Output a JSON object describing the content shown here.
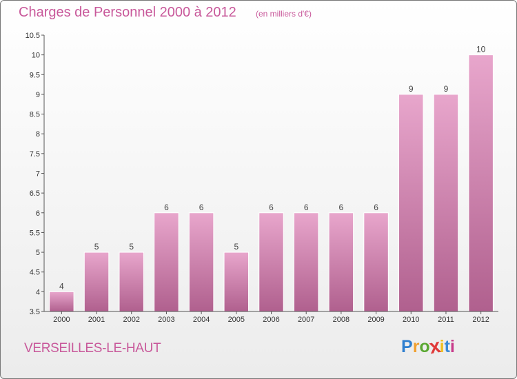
{
  "title": "Charges de Personnel 2000 à 2012",
  "subtitle": "(en milliers d'€)",
  "location": "VERSEILLES-LE-HAUT",
  "logo": {
    "letters": [
      "P",
      "r",
      "o",
      "x",
      "i",
      "t",
      "i"
    ],
    "colors": [
      "#2e7fcf",
      "#f0a030",
      "#5aa832",
      "#e03a3a",
      "#f0c020",
      "#3a8ad6",
      "#c83a8a"
    ]
  },
  "colors": {
    "bar_top": "#e8a6cc",
    "bar_bottom": "#b0608e",
    "text": "#c8589a",
    "axis": "#555555"
  },
  "chart_data": {
    "type": "bar",
    "categories": [
      "2000",
      "2001",
      "2002",
      "2003",
      "2004",
      "2005",
      "2006",
      "2007",
      "2008",
      "2009",
      "2010",
      "2011",
      "2012"
    ],
    "values": [
      4,
      5,
      5,
      6,
      6,
      5,
      6,
      6,
      6,
      6,
      9,
      9,
      10
    ],
    "value_labels": [
      "4",
      "5",
      "5",
      "6",
      "6",
      "5",
      "6",
      "6",
      "6",
      "6",
      "9",
      "9",
      "10"
    ],
    "ylim": [
      3.5,
      10.5
    ],
    "yticks": [
      3.5,
      4,
      4.5,
      5,
      5.5,
      6,
      6.5,
      7,
      7.5,
      8,
      8.5,
      9,
      9.5,
      10,
      10.5
    ],
    "ytick_labels": [
      "3.5",
      "4",
      "4.5",
      "5",
      "5.5",
      "6",
      "6.5",
      "7",
      "7.5",
      "8",
      "8.5",
      "9",
      "9.5",
      "10",
      "10.5"
    ],
    "grid": false,
    "xlabel": "",
    "ylabel": ""
  }
}
